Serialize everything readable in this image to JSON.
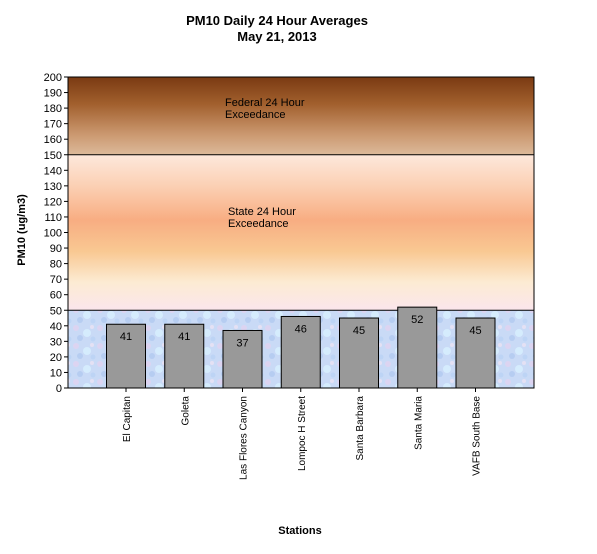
{
  "chart_data": {
    "type": "bar",
    "title": "PM10 Daily 24 Hour Averages",
    "subtitle": "May 21, 2013",
    "xlabel": "Stations",
    "ylabel": "PM10 (ug/m3)",
    "ylim": [
      0,
      200
    ],
    "ytick_step": 10,
    "categories": [
      "El Capitan",
      "Goleta",
      "Las Flores Canyon",
      "Lompoc H Street",
      "Santa Barbara",
      "Santa Maria",
      "VAFB South Base"
    ],
    "values": [
      41,
      41,
      37,
      46,
      45,
      52,
      45
    ],
    "data_labels": [
      "41",
      "41",
      "37",
      "46",
      "45",
      "52",
      "45"
    ],
    "bar_color": "#999999",
    "zones": [
      {
        "name": "Federal 24 Hour Exceedance",
        "line1": "Federal 24 Hour",
        "line2": "Exceedance",
        "from": 150,
        "to": 200
      },
      {
        "name": "State 24 Hour Exceedance",
        "line1": "State 24 Hour",
        "line2": "Exceedance",
        "from": 50,
        "to": 150
      }
    ],
    "grid": false,
    "legend": "none"
  }
}
